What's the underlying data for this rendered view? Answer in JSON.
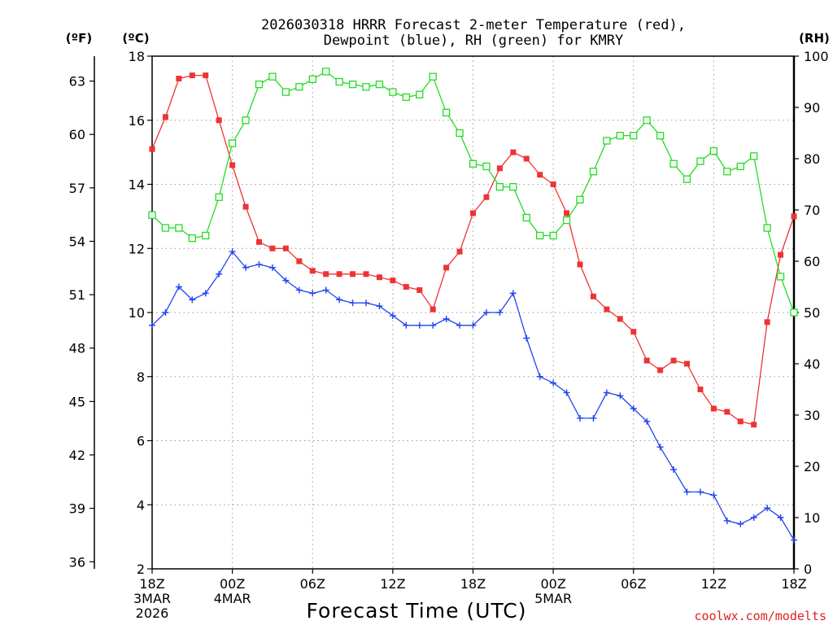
{
  "chart_data": {
    "type": "line",
    "title_line1": "2026030318 HRRR Forecast 2-meter Temperature (red),",
    "title_line2": "Dewpoint (blue), RH (green) for KMRY",
    "xlabel": "Forecast Time (UTC)",
    "credit": "coolwx.com/modelts",
    "units": {
      "fahrenheit": "(ºF)",
      "celsius": "(ºC)",
      "rh": "(RH)"
    },
    "x_range_hours": [
      0,
      48
    ],
    "ylim_c": [
      2,
      18
    ],
    "ylim_rh": [
      0,
      100
    ],
    "x_ticks": [
      {
        "h": 0,
        "label": "18Z",
        "sub1": "3MAR",
        "sub2": "2026"
      },
      {
        "h": 6,
        "label": "00Z",
        "sub1": "4MAR",
        "sub2": ""
      },
      {
        "h": 12,
        "label": "06Z",
        "sub1": "",
        "sub2": ""
      },
      {
        "h": 18,
        "label": "12Z",
        "sub1": "",
        "sub2": ""
      },
      {
        "h": 24,
        "label": "18Z",
        "sub1": "",
        "sub2": ""
      },
      {
        "h": 30,
        "label": "00Z",
        "sub1": "5MAR",
        "sub2": ""
      },
      {
        "h": 36,
        "label": "06Z",
        "sub1": "",
        "sub2": ""
      },
      {
        "h": 42,
        "label": "12Z",
        "sub1": "",
        "sub2": ""
      },
      {
        "h": 48,
        "label": "18Z",
        "sub1": "",
        "sub2": ""
      }
    ],
    "celsius_ticks": [
      "2",
      "4",
      "6",
      "8",
      "10",
      "12",
      "14",
      "16",
      "18"
    ],
    "fahrenheit_ticks": [
      {
        "c": 2.222,
        "label": "36"
      },
      {
        "c": 3.889,
        "label": "39"
      },
      {
        "c": 5.556,
        "label": "42"
      },
      {
        "c": 7.222,
        "label": "45"
      },
      {
        "c": 8.889,
        "label": "48"
      },
      {
        "c": 10.556,
        "label": "51"
      },
      {
        "c": 12.222,
        "label": "54"
      },
      {
        "c": 13.889,
        "label": "57"
      },
      {
        "c": 15.556,
        "label": "60"
      },
      {
        "c": 17.222,
        "label": "63"
      }
    ],
    "rh_ticks": [
      "0",
      "10",
      "20",
      "30",
      "40",
      "50",
      "60",
      "70",
      "80",
      "90",
      "100"
    ],
    "series": [
      {
        "name": "Temperature (°C)",
        "color": "#ee3333",
        "marker": "filled-square",
        "axis": "c",
        "values": [
          15.1,
          16.1,
          17.3,
          17.4,
          17.4,
          16.0,
          14.6,
          13.3,
          12.2,
          12.0,
          12.0,
          11.6,
          11.3,
          11.2,
          11.2,
          11.2,
          11.2,
          11.1,
          11.0,
          10.8,
          10.7,
          10.1,
          11.4,
          11.9,
          13.1,
          13.6,
          14.5,
          15.0,
          14.8,
          14.3,
          14.0,
          13.1,
          11.5,
          10.5,
          10.1,
          9.8,
          9.4,
          8.5,
          8.2,
          8.5,
          8.4,
          7.6,
          7.0,
          6.9,
          6.6,
          6.5,
          9.7,
          11.8,
          13.0
        ]
      },
      {
        "name": "Dewpoint (°C)",
        "color": "#2244ee",
        "marker": "plus",
        "axis": "c",
        "values": [
          9.6,
          10.0,
          10.8,
          10.4,
          10.6,
          11.2,
          11.9,
          11.4,
          11.5,
          11.4,
          11.0,
          10.7,
          10.6,
          10.7,
          10.4,
          10.3,
          10.3,
          10.2,
          9.9,
          9.6,
          9.6,
          9.6,
          9.8,
          9.6,
          9.6,
          10.0,
          10.0,
          10.6,
          9.2,
          8.0,
          7.8,
          7.5,
          6.7,
          6.7,
          7.5,
          7.4,
          7.0,
          6.6,
          5.8,
          5.1,
          4.4,
          4.4,
          4.3,
          3.5,
          3.4,
          3.6,
          3.9,
          3.6,
          2.9
        ]
      },
      {
        "name": "RH (%)",
        "color": "#22dd22",
        "marker": "open-square",
        "axis": "rh",
        "values": [
          69,
          66.5,
          66.5,
          64.5,
          65,
          72.5,
          83,
          87.5,
          94.5,
          96,
          93,
          94,
          95.5,
          97,
          95,
          94.5,
          94,
          94.5,
          93,
          92,
          92.5,
          96,
          89,
          85,
          79,
          78.5,
          74.5,
          74.5,
          68.5,
          65,
          65,
          68,
          72,
          77.5,
          83.5,
          84.5,
          84.5,
          87.5,
          84.5,
          79,
          76,
          79.5,
          81.5,
          77.5,
          78.5,
          80.5,
          66.5,
          57,
          50
        ]
      }
    ]
  }
}
